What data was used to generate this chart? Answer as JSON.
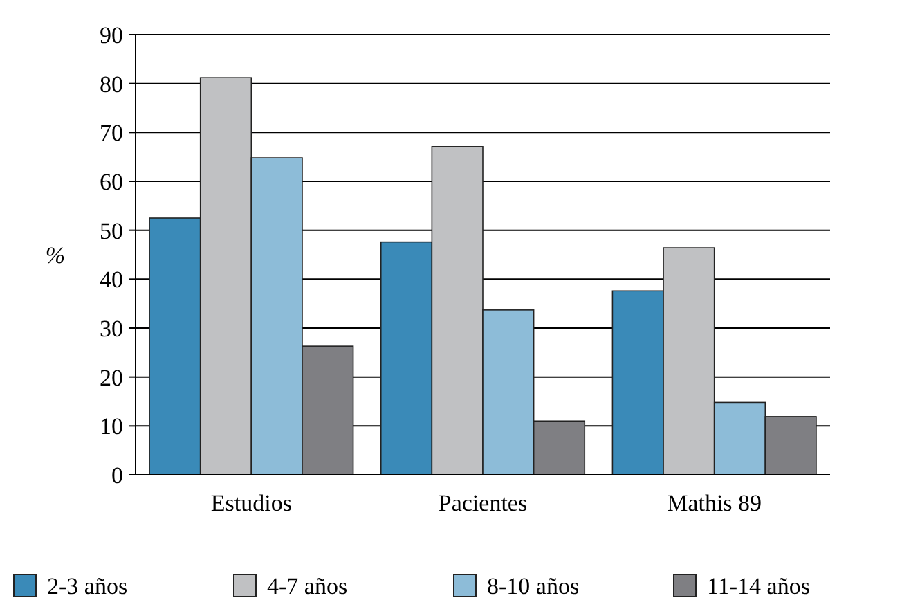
{
  "chart_data": {
    "type": "bar",
    "ylabel": "%",
    "categories": [
      "Estudios",
      "Pacientes",
      "Mathis 89"
    ],
    "series": [
      {
        "name": "2-3 años",
        "color": "#3a8ab8",
        "values": [
          52.5,
          47.6,
          37.6
        ]
      },
      {
        "name": "4-7 años",
        "color": "#c0c1c3",
        "values": [
          81.2,
          67.1,
          46.4
        ]
      },
      {
        "name": "8-10 años",
        "color": "#8dbcd8",
        "values": [
          64.8,
          33.7,
          14.8
        ]
      },
      {
        "name": "11-14 años",
        "color": "#7f7f83",
        "values": [
          26.3,
          11,
          11.9
        ]
      }
    ],
    "ylim": [
      0,
      90
    ],
    "yticks": [
      0,
      10,
      20,
      30,
      40,
      50,
      60,
      70,
      80,
      90
    ],
    "grid": "y",
    "legend": "bottom"
  }
}
